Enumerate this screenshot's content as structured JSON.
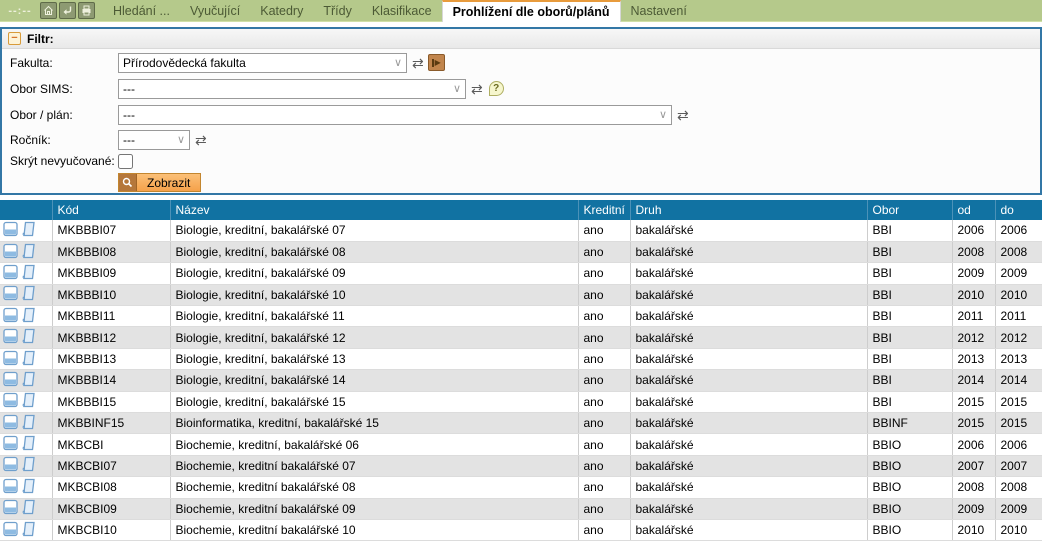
{
  "navbar": {
    "timer": "--:--",
    "tabs": [
      {
        "label": "Hledání ...",
        "active": false
      },
      {
        "label": "Vyučující",
        "active": false
      },
      {
        "label": "Katedry",
        "active": false
      },
      {
        "label": "Třídy",
        "active": false
      },
      {
        "label": "Klasifikace",
        "active": false
      },
      {
        "label": "Prohlížení dle oborů/plánů",
        "active": true
      },
      {
        "label": "Nastavení",
        "active": false
      }
    ]
  },
  "filter": {
    "title": "Filtr:",
    "collapse_glyph": "−",
    "fakulta": {
      "label": "Fakulta:",
      "value": "Přírodovědecká fakulta"
    },
    "obor_sims": {
      "label": "Obor SIMS:",
      "value": "---"
    },
    "obor_plan": {
      "label": "Obor / plán:",
      "value": "---"
    },
    "rocnik": {
      "label": "Ročník:",
      "value": "---"
    },
    "skryt_nevyucovane": {
      "label": "Skrýt nevyučované:",
      "checked": false
    },
    "submit_label": "Zobrazit",
    "chevron_glyph": "∨",
    "refresh_glyph": "⇄",
    "help_glyph": "?",
    "id_button_glyph": "▶"
  },
  "table": {
    "headers": [
      "Kód",
      "Název",
      "Kreditní",
      "Druh",
      "Obor",
      "od",
      "do"
    ],
    "rows": [
      {
        "kod": "MKBBBI07",
        "nazev": "Biologie, kreditní, bakalářské 07",
        "kreditni": "ano",
        "druh": "bakalářské",
        "obor": "BBI",
        "od": "2006",
        "do": "2006"
      },
      {
        "kod": "MKBBBI08",
        "nazev": "Biologie, kreditní, bakalářské 08",
        "kreditni": "ano",
        "druh": "bakalářské",
        "obor": "BBI",
        "od": "2008",
        "do": "2008"
      },
      {
        "kod": "MKBBBI09",
        "nazev": "Biologie, kreditní, bakalářské 09",
        "kreditni": "ano",
        "druh": "bakalářské",
        "obor": "BBI",
        "od": "2009",
        "do": "2009"
      },
      {
        "kod": "MKBBBI10",
        "nazev": "Biologie, kreditní, bakalářské 10",
        "kreditni": "ano",
        "druh": "bakalářské",
        "obor": "BBI",
        "od": "2010",
        "do": "2010"
      },
      {
        "kod": "MKBBBI11",
        "nazev": "Biologie, kreditní, bakalářské 11",
        "kreditni": "ano",
        "druh": "bakalářské",
        "obor": "BBI",
        "od": "2011",
        "do": "2011"
      },
      {
        "kod": "MKBBBI12",
        "nazev": "Biologie, kreditní, bakalářské 12",
        "kreditni": "ano",
        "druh": "bakalářské",
        "obor": "BBI",
        "od": "2012",
        "do": "2012"
      },
      {
        "kod": "MKBBBI13",
        "nazev": "Biologie, kreditní, bakalářské 13",
        "kreditni": "ano",
        "druh": "bakalářské",
        "obor": "BBI",
        "od": "2013",
        "do": "2013"
      },
      {
        "kod": "MKBBBI14",
        "nazev": "Biologie, kreditní, bakalářské 14",
        "kreditni": "ano",
        "druh": "bakalářské",
        "obor": "BBI",
        "od": "2014",
        "do": "2014"
      },
      {
        "kod": "MKBBBI15",
        "nazev": "Biologie, kreditní, bakalářské 15",
        "kreditni": "ano",
        "druh": "bakalářské",
        "obor": "BBI",
        "od": "2015",
        "do": "2015"
      },
      {
        "kod": "MKBBINF15",
        "nazev": "Bioinformatika, kreditní, bakalářské 15",
        "kreditni": "ano",
        "druh": "bakalářské",
        "obor": "BBINF",
        "od": "2015",
        "do": "2015"
      },
      {
        "kod": "MKBCBI",
        "nazev": "Biochemie, kreditní, bakalářské 06",
        "kreditni": "ano",
        "druh": "bakalářské",
        "obor": "BBIO",
        "od": "2006",
        "do": "2006"
      },
      {
        "kod": "MKBCBI07",
        "nazev": "Biochemie, kreditní bakalářské 07",
        "kreditni": "ano",
        "druh": "bakalářské",
        "obor": "BBIO",
        "od": "2007",
        "do": "2007"
      },
      {
        "kod": "MKBCBI08",
        "nazev": "Biochemie, kreditní bakalářské 08",
        "kreditni": "ano",
        "druh": "bakalářské",
        "obor": "BBIO",
        "od": "2008",
        "do": "2008"
      },
      {
        "kod": "MKBCBI09",
        "nazev": "Biochemie, kreditní bakalářské 09",
        "kreditni": "ano",
        "druh": "bakalářské",
        "obor": "BBIO",
        "od": "2009",
        "do": "2009"
      },
      {
        "kod": "MKBCBI10",
        "nazev": "Biochemie, kreditní bakalářské 10",
        "kreditni": "ano",
        "druh": "bakalářské",
        "obor": "BBIO",
        "od": "2010",
        "do": "2010"
      }
    ]
  },
  "colors": {
    "nav_green": "#b5c98b",
    "accent_orange": "#e89b3c",
    "table_header_blue": "#1172a2",
    "panel_border_blue": "#3377a6",
    "row_alt_gray": "#e3e3e3"
  }
}
